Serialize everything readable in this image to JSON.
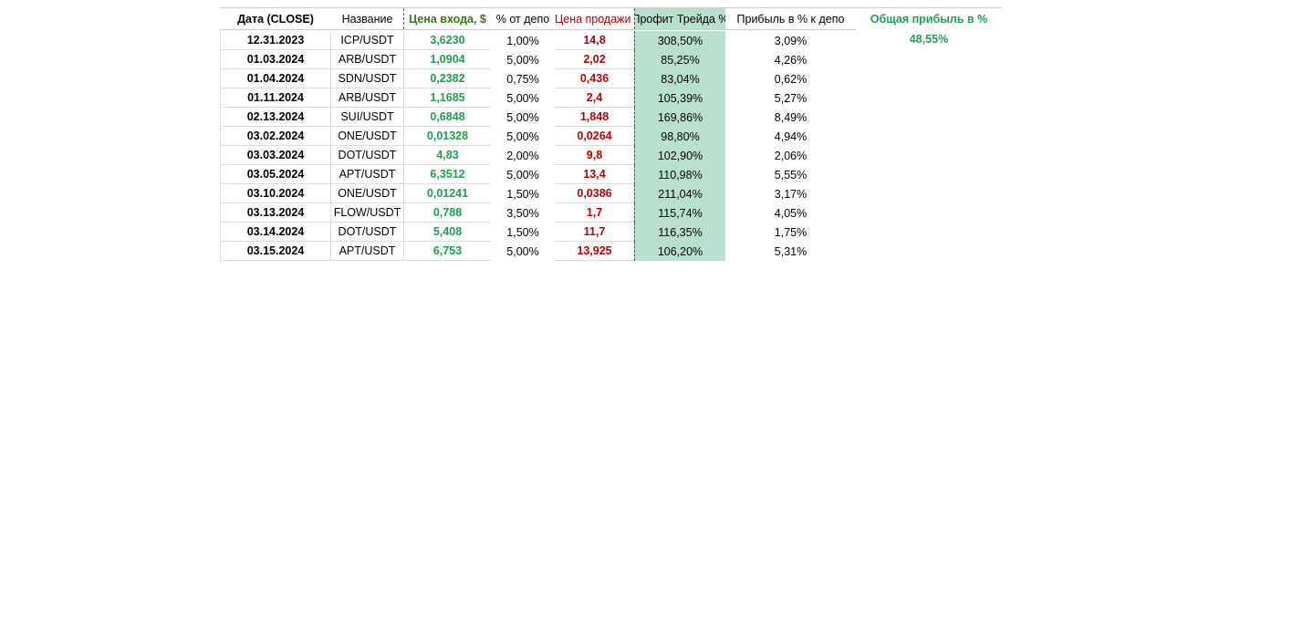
{
  "table": {
    "headers": [
      "Дата (CLOSE)",
      "Название",
      "Цена входа, $",
      "% от депо",
      "Цена продажи",
      "Профит Трейда %",
      "Прибыль в % к депо"
    ],
    "rows": [
      [
        "12.31.2023",
        "ICP/USDT",
        "3,6230",
        "1,00%",
        "14,8",
        "308,50%",
        "3,09%"
      ],
      [
        "01.03.2024",
        "ARB/USDT",
        "1,0904",
        "5,00%",
        "2,02",
        "85,25%",
        "4,26%"
      ],
      [
        "01.04.2024",
        "SDN/USDT",
        "0,2382",
        "0,75%",
        "0,436",
        "83,04%",
        "0,62%"
      ],
      [
        "01.11.2024",
        "ARB/USDT",
        "1,1685",
        "5,00%",
        "2,4",
        "105,39%",
        "5,27%"
      ],
      [
        "02.13.2024",
        "SUI/USDT",
        "0,6848",
        "5,00%",
        "1,848",
        "169,86%",
        "8,49%"
      ],
      [
        "03.02.2024",
        "ONE/USDT",
        "0,01328",
        "5,00%",
        "0,0264",
        "98,80%",
        "4,94%"
      ],
      [
        "03.03.2024",
        "DOT/USDT",
        "4,83",
        "2,00%",
        "9,8",
        "102,90%",
        "2,06%"
      ],
      [
        "03.05.2024",
        "APT/USDT",
        "6,3512",
        "5,00%",
        "13,4",
        "110,98%",
        "5,55%"
      ],
      [
        "03.10.2024",
        "ONE/USDT",
        "0,01241",
        "1,50%",
        "0,0386",
        "211,04%",
        "3,17%"
      ],
      [
        "03.13.2024",
        "FLOW/USDT",
        "0,788",
        "3,50%",
        "1,7",
        "115,74%",
        "4,05%"
      ],
      [
        "03.14.2024",
        "DOT/USDT",
        "5,408",
        "1,50%",
        "11,7",
        "116,35%",
        "1,75%"
      ],
      [
        "03.15.2024",
        "APT/USDT",
        "6,753",
        "5,00%",
        "13,925",
        "106,20%",
        "5,31%"
      ]
    ]
  },
  "summary": {
    "label": "Общая прибыль в %",
    "value": "48,55%"
  }
}
